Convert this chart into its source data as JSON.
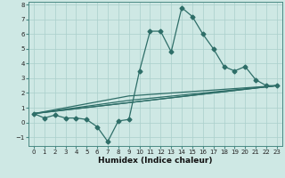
{
  "xlabel": "Humidex (Indice chaleur)",
  "background_color": "#cee8e4",
  "grid_color": "#aacfcb",
  "line_color": "#2e6e68",
  "xlim": [
    -0.5,
    23.5
  ],
  "ylim": [
    -1.6,
    8.2
  ],
  "xticks": [
    0,
    1,
    2,
    3,
    4,
    5,
    6,
    7,
    8,
    9,
    10,
    11,
    12,
    13,
    14,
    15,
    16,
    17,
    18,
    19,
    20,
    21,
    22,
    23
  ],
  "yticks": [
    -1,
    0,
    1,
    2,
    3,
    4,
    5,
    6,
    7,
    8
  ],
  "main_line": {
    "x": [
      0,
      1,
      2,
      3,
      4,
      5,
      6,
      7,
      8,
      9,
      10,
      11,
      12,
      13,
      14,
      15,
      16,
      17,
      18,
      19,
      20,
      21,
      22,
      23
    ],
    "y": [
      0.6,
      0.3,
      0.5,
      0.3,
      0.3,
      0.2,
      -0.3,
      -1.3,
      0.1,
      0.2,
      3.5,
      6.2,
      6.2,
      4.8,
      7.8,
      7.2,
      6.0,
      5.0,
      3.8,
      3.5,
      3.8,
      2.9,
      2.5,
      2.5
    ]
  },
  "extra_lines": [
    {
      "x": [
        0,
        23
      ],
      "y": [
        0.6,
        2.5
      ]
    },
    {
      "x": [
        0,
        23
      ],
      "y": [
        0.6,
        2.5
      ]
    },
    {
      "x": [
        0,
        9,
        23
      ],
      "y": [
        0.6,
        1.8,
        2.5
      ]
    },
    {
      "x": [
        0,
        9,
        23
      ],
      "y": [
        0.6,
        1.5,
        2.5
      ]
    }
  ],
  "markersize": 2.5,
  "linewidth": 0.9,
  "tick_fontsize": 5.0,
  "xlabel_fontsize": 6.5
}
